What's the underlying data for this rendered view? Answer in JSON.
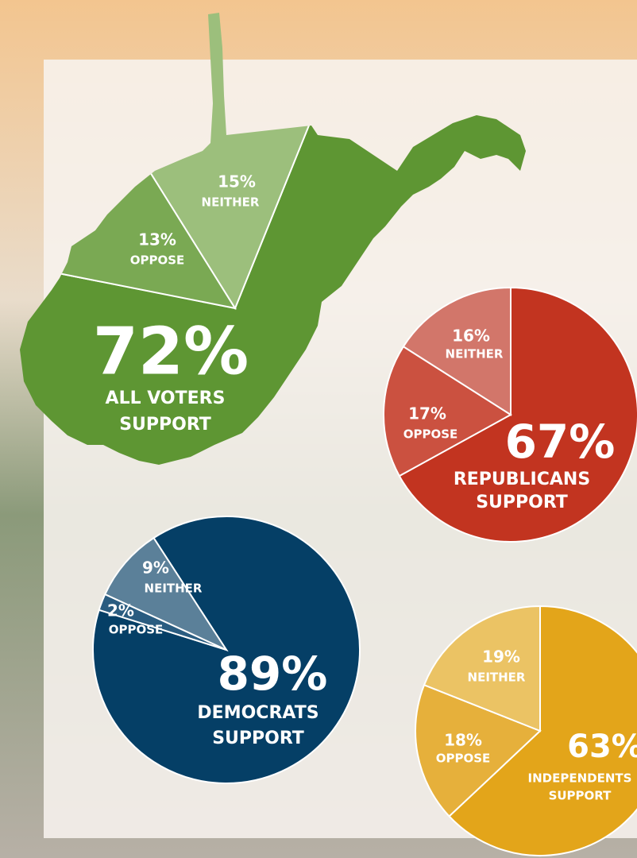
{
  "chart_data": [
    {
      "type": "pie",
      "title": "ALL VOTERS",
      "categories": [
        "SUPPORT",
        "OPPOSE",
        "NEITHER"
      ],
      "values": [
        72,
        13,
        15
      ],
      "value_labels": [
        "72%",
        "13%",
        "15%"
      ],
      "colors": [
        "#5e9633",
        "#7aa953",
        "#9cbf7c"
      ]
    },
    {
      "type": "pie",
      "title": "REPUBLICANS",
      "categories": [
        "SUPPORT",
        "OPPOSE",
        "NEITHER"
      ],
      "values": [
        67,
        17,
        16
      ],
      "value_labels": [
        "67%",
        "17%",
        "16%"
      ],
      "colors": [
        "#c23420",
        "#cb5140",
        "#d2766a"
      ]
    },
    {
      "type": "pie",
      "title": "DEMOCRATS",
      "categories": [
        "SUPPORT",
        "OPPOSE",
        "NEITHER"
      ],
      "values": [
        89,
        2,
        9
      ],
      "value_labels": [
        "89%",
        "2%",
        "9%"
      ],
      "colors": [
        "#053f66",
        "#2a5c80",
        "#5b8099"
      ]
    },
    {
      "type": "pie",
      "title": "INDEPENDENTS",
      "categories": [
        "SUPPORT",
        "OPPOSE",
        "NEITHER"
      ],
      "values": [
        63,
        18,
        19
      ],
      "value_labels": [
        "63%",
        "18%",
        "19%"
      ],
      "colors": [
        "#e3a51a",
        "#e6b03b",
        "#ebc364"
      ]
    }
  ]
}
